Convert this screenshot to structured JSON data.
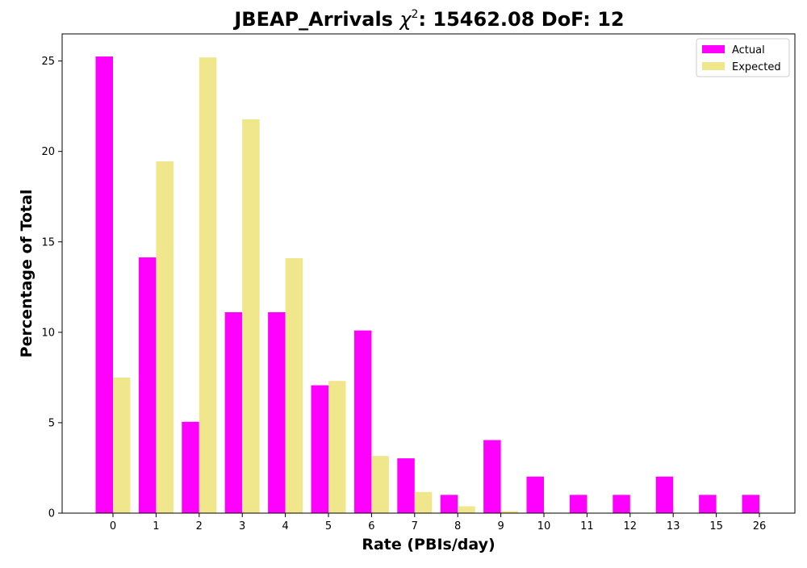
{
  "chart_data": {
    "type": "bar",
    "title": "JBEAP_Arrivals χ²: 15462.08 DoF: 12",
    "title_parts": {
      "prefix": "JBEAP_Arrivals ",
      "chi": "χ",
      "superscript": "2",
      "suffix": ": 15462.08 DoF: 12"
    },
    "xlabel": "Rate (PBIs/day)",
    "ylabel": "Percentage of Total",
    "categories": [
      "0",
      "1",
      "2",
      "3",
      "4",
      "5",
      "6",
      "7",
      "8",
      "9",
      "10",
      "11",
      "12",
      "13",
      "15",
      "26"
    ],
    "series": [
      {
        "name": "Actual",
        "color": "#ff00ff",
        "values": [
          25.25,
          14.14,
          5.05,
          11.11,
          11.11,
          7.07,
          10.1,
          3.03,
          1.01,
          4.04,
          2.02,
          1.01,
          1.01,
          2.02,
          1.01,
          1.01
        ]
      },
      {
        "name": "Expected",
        "color": "#f0e68c",
        "values": [
          7.5,
          19.45,
          25.2,
          21.78,
          14.1,
          7.31,
          3.16,
          1.17,
          0.38,
          0.11,
          0.03,
          0.0,
          0.0,
          0.0,
          0.0,
          0.0
        ]
      }
    ],
    "ylim": [
      0,
      26.5
    ],
    "yticks": [
      0,
      5,
      10,
      15,
      20,
      25
    ],
    "grid": false,
    "legend_position": "top-right"
  }
}
